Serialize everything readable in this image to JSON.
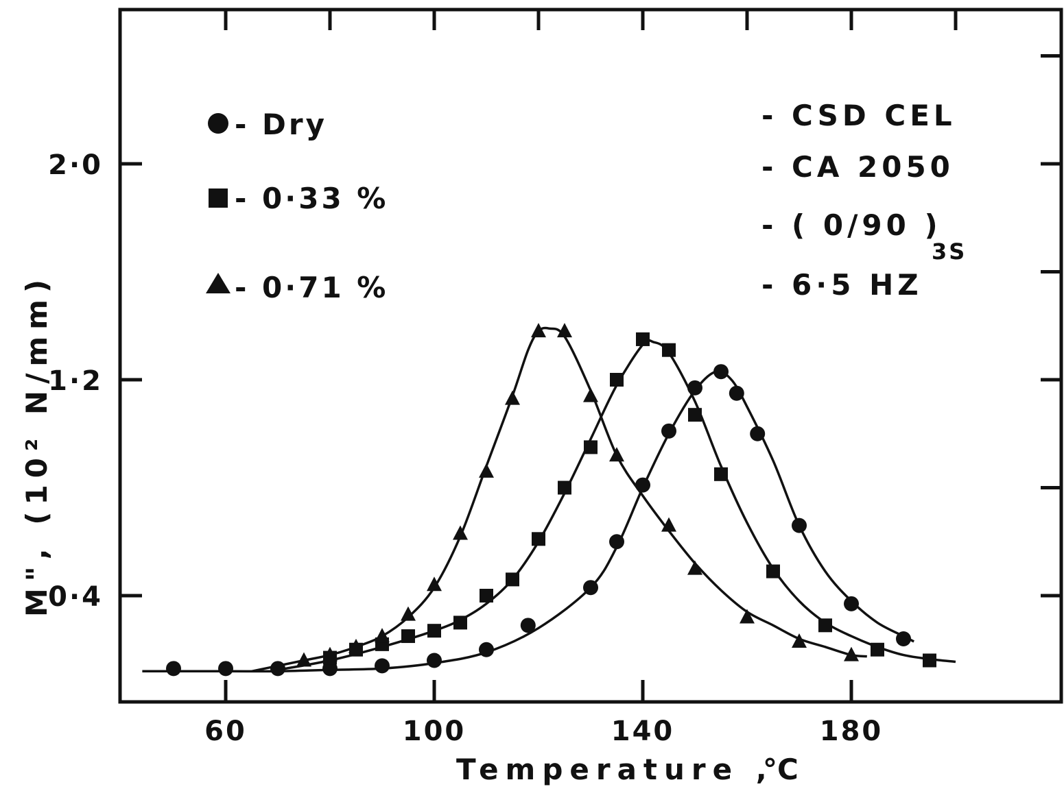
{
  "chart_data": {
    "type": "scatter",
    "title": "",
    "xlabel": "Temperature ,",
    "xlabel_unit": "°C",
    "ylabel": "M\", (10² N/mm)",
    "xlim": [
      43,
      215
    ],
    "ylim": [
      0.0,
      2.6
    ],
    "x_ticks": [
      60,
      100,
      140,
      180
    ],
    "x_tick_labels": [
      "60",
      "100",
      "140",
      "180"
    ],
    "y_ticks": [
      0.4,
      1.2,
      2.0
    ],
    "y_tick_labels": [
      "0·4",
      "1·2",
      "2·0"
    ],
    "grid": false,
    "legend_position": "top-left",
    "legend": [
      {
        "marker": "circle",
        "label": "- Dry"
      },
      {
        "marker": "square",
        "label": "- 0·33 %"
      },
      {
        "marker": "triangle",
        "label": "- 0·71 %"
      }
    ],
    "annotations": [
      "- CSD CEL",
      "- CA 2050",
      "- ( 0/90 )",
      "3S",
      "- 6·5 HZ"
    ],
    "series": [
      {
        "label": "Dry",
        "marker": "circle",
        "points": [
          [
            50,
            0.13
          ],
          [
            60,
            0.13
          ],
          [
            70,
            0.13
          ],
          [
            80,
            0.13
          ],
          [
            90,
            0.14
          ],
          [
            100,
            0.16
          ],
          [
            110,
            0.2
          ],
          [
            118,
            0.29
          ],
          [
            130,
            0.43
          ],
          [
            135,
            0.6
          ],
          [
            140,
            0.81
          ],
          [
            145,
            1.01
          ],
          [
            150,
            1.17
          ],
          [
            155,
            1.23
          ],
          [
            158,
            1.15
          ],
          [
            162,
            1.0
          ],
          [
            170,
            0.66
          ],
          [
            180,
            0.37
          ],
          [
            190,
            0.24
          ]
        ],
        "curve": [
          [
            44,
            0.12
          ],
          [
            60,
            0.12
          ],
          [
            70,
            0.12
          ],
          [
            80,
            0.125
          ],
          [
            90,
            0.13
          ],
          [
            100,
            0.15
          ],
          [
            110,
            0.19
          ],
          [
            120,
            0.28
          ],
          [
            130,
            0.43
          ],
          [
            135,
            0.58
          ],
          [
            140,
            0.8
          ],
          [
            145,
            1.0
          ],
          [
            150,
            1.16
          ],
          [
            154,
            1.23
          ],
          [
            157,
            1.2
          ],
          [
            160,
            1.1
          ],
          [
            165,
            0.9
          ],
          [
            170,
            0.66
          ],
          [
            175,
            0.49
          ],
          [
            180,
            0.38
          ],
          [
            185,
            0.3
          ],
          [
            190,
            0.25
          ],
          [
            192,
            0.23
          ]
        ]
      },
      {
        "label": "0.33%",
        "marker": "square",
        "points": [
          [
            80,
            0.17
          ],
          [
            85,
            0.2
          ],
          [
            90,
            0.22
          ],
          [
            95,
            0.25
          ],
          [
            100,
            0.27
          ],
          [
            105,
            0.3
          ],
          [
            110,
            0.4
          ],
          [
            115,
            0.46
          ],
          [
            120,
            0.61
          ],
          [
            125,
            0.8
          ],
          [
            130,
            0.95
          ],
          [
            135,
            1.2
          ],
          [
            140,
            1.35
          ],
          [
            145,
            1.31
          ],
          [
            150,
            1.07
          ],
          [
            155,
            0.85
          ],
          [
            165,
            0.49
          ],
          [
            175,
            0.29
          ],
          [
            185,
            0.2
          ],
          [
            195,
            0.16
          ]
        ],
        "curve": [
          [
            70,
            0.125
          ],
          [
            80,
            0.16
          ],
          [
            90,
            0.21
          ],
          [
            100,
            0.27
          ],
          [
            105,
            0.31
          ],
          [
            110,
            0.37
          ],
          [
            115,
            0.46
          ],
          [
            120,
            0.6
          ],
          [
            125,
            0.78
          ],
          [
            130,
            0.98
          ],
          [
            135,
            1.18
          ],
          [
            140,
            1.33
          ],
          [
            142,
            1.34
          ],
          [
            145,
            1.3
          ],
          [
            150,
            1.12
          ],
          [
            155,
            0.88
          ],
          [
            160,
            0.67
          ],
          [
            165,
            0.5
          ],
          [
            170,
            0.38
          ],
          [
            175,
            0.3
          ],
          [
            180,
            0.25
          ],
          [
            185,
            0.21
          ],
          [
            190,
            0.18
          ],
          [
            195,
            0.165
          ],
          [
            200,
            0.155
          ]
        ]
      },
      {
        "label": "0.71%",
        "marker": "triangle",
        "points": [
          [
            75,
            0.16
          ],
          [
            80,
            0.18
          ],
          [
            85,
            0.21
          ],
          [
            90,
            0.25
          ],
          [
            95,
            0.33
          ],
          [
            100,
            0.44
          ],
          [
            105,
            0.63
          ],
          [
            110,
            0.86
          ],
          [
            115,
            1.13
          ],
          [
            120,
            1.38
          ],
          [
            125,
            1.38
          ],
          [
            130,
            1.14
          ],
          [
            135,
            0.92
          ],
          [
            145,
            0.66
          ],
          [
            150,
            0.5
          ],
          [
            160,
            0.32
          ],
          [
            170,
            0.23
          ],
          [
            180,
            0.18
          ]
        ],
        "curve": [
          [
            65,
            0.12
          ],
          [
            75,
            0.16
          ],
          [
            80,
            0.18
          ],
          [
            85,
            0.21
          ],
          [
            90,
            0.25
          ],
          [
            95,
            0.32
          ],
          [
            100,
            0.43
          ],
          [
            105,
            0.62
          ],
          [
            110,
            0.88
          ],
          [
            115,
            1.14
          ],
          [
            118,
            1.31
          ],
          [
            120,
            1.38
          ],
          [
            122,
            1.39
          ],
          [
            125,
            1.36
          ],
          [
            130,
            1.16
          ],
          [
            135,
            0.92
          ],
          [
            140,
            0.77
          ],
          [
            145,
            0.64
          ],
          [
            150,
            0.52
          ],
          [
            155,
            0.42
          ],
          [
            160,
            0.34
          ],
          [
            165,
            0.29
          ],
          [
            170,
            0.24
          ],
          [
            175,
            0.21
          ],
          [
            180,
            0.18
          ],
          [
            183,
            0.175
          ]
        ]
      }
    ]
  }
}
